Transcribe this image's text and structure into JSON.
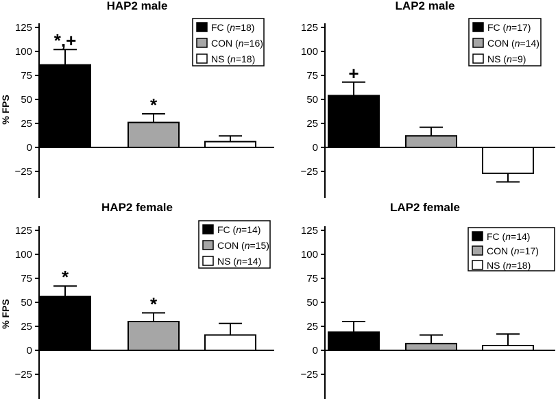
{
  "chart_data": [
    {
      "type": "bar",
      "title": "HAP2 male",
      "ylabel": "% FPS",
      "ylim": [
        -50,
        125
      ],
      "yticks": [
        125,
        100,
        75,
        50,
        25,
        0,
        -25
      ],
      "ytick_labels": [
        "125",
        "100",
        "75",
        "50",
        "25",
        "0",
        "−25"
      ],
      "legend_position": "top-right",
      "series": [
        {
          "label": "FC",
          "label_n": "n",
          "label_count": "=18",
          "label_close": ")",
          "value": 86,
          "error": 16,
          "annotation": "*,+",
          "fill": "#000000"
        },
        {
          "label": "CON",
          "label_n": "n",
          "label_count": "=16",
          "label_close": ")",
          "value": 26,
          "error": 9,
          "annotation": "*",
          "fill": "#a6a6a6"
        },
        {
          "label": "NS",
          "label_n": "n",
          "label_count": "=18",
          "label_close": ")",
          "value": 6,
          "error": 6,
          "annotation": "",
          "fill": "#ffffff"
        }
      ]
    },
    {
      "type": "bar",
      "title": "LAP2 male",
      "ylabel": "",
      "ylim": [
        -50,
        125
      ],
      "yticks": [
        125,
        100,
        75,
        50,
        25,
        0,
        -25
      ],
      "ytick_labels": [
        "125",
        "100",
        "75",
        "50",
        "25",
        "0",
        "−25"
      ],
      "legend_position": "top-right",
      "series": [
        {
          "label": "FC",
          "label_n": "n",
          "label_count": "=17",
          "label_close": ")",
          "value": 54,
          "error": 14,
          "annotation": "+",
          "fill": "#000000"
        },
        {
          "label": "CON",
          "label_n": "n",
          "label_count": "=14",
          "label_close": ")",
          "value": 12,
          "error": 9,
          "annotation": "",
          "fill": "#a6a6a6"
        },
        {
          "label": "NS",
          "label_n": "n",
          "label_count": "=9",
          "label_close": ")",
          "value": -27,
          "error": 9,
          "annotation": "",
          "fill": "#ffffff"
        }
      ]
    },
    {
      "type": "bar",
      "title": "HAP2 female",
      "ylabel": "% FPS",
      "ylim": [
        -50,
        125
      ],
      "yticks": [
        125,
        100,
        75,
        50,
        25,
        0,
        -25
      ],
      "ytick_labels": [
        "125",
        "100",
        "75",
        "50",
        "25",
        "0",
        "−25"
      ],
      "legend_position": "top-right",
      "series": [
        {
          "label": "FC",
          "label_n": "n",
          "label_count": "=14",
          "label_close": ")",
          "value": 56,
          "error": 11,
          "annotation": "*",
          "fill": "#000000"
        },
        {
          "label": "CON",
          "label_n": "n",
          "label_count": "=15",
          "label_close": ")",
          "value": 30,
          "error": 9,
          "annotation": "*",
          "fill": "#a6a6a6"
        },
        {
          "label": "NS",
          "label_n": "n",
          "label_count": "=14",
          "label_close": ")",
          "value": 16,
          "error": 12,
          "annotation": "",
          "fill": "#ffffff"
        }
      ]
    },
    {
      "type": "bar",
      "title": "LAP2 female",
      "ylabel": "",
      "ylim": [
        -50,
        125
      ],
      "yticks": [
        125,
        100,
        75,
        50,
        25,
        0,
        -25
      ],
      "ytick_labels": [
        "125",
        "100",
        "75",
        "50",
        "25",
        "0",
        "−25"
      ],
      "legend_position": "top-right",
      "series": [
        {
          "label": "FC",
          "label_n": "n",
          "label_count": "=14",
          "label_close": ")",
          "value": 19,
          "error": 11,
          "annotation": "",
          "fill": "#000000"
        },
        {
          "label": "CON",
          "label_n": "n",
          "label_count": "=17",
          "label_close": ")",
          "value": 7,
          "error": 9,
          "annotation": "",
          "fill": "#a6a6a6"
        },
        {
          "label": "NS",
          "label_n": "n",
          "label_count": "=18",
          "label_close": ")",
          "value": 5,
          "error": 12,
          "annotation": "",
          "fill": "#ffffff"
        }
      ]
    }
  ]
}
